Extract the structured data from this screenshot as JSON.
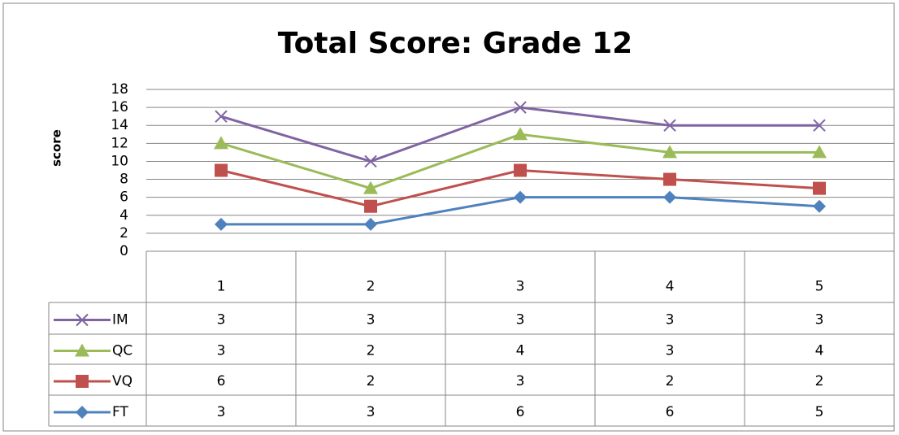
{
  "chart_data": {
    "type": "line",
    "stacked": true,
    "title": "Total Score: Grade 12",
    "y_label": "score",
    "categories": [
      "1",
      "2",
      "3",
      "4",
      "5"
    ],
    "series": [
      {
        "name": "IM",
        "color": "#8064a2",
        "marker": "x",
        "values": [
          3,
          3,
          3,
          3,
          3
        ]
      },
      {
        "name": "QC",
        "color": "#9bbb59",
        "marker": "triangle",
        "values": [
          3,
          2,
          4,
          3,
          4
        ]
      },
      {
        "name": "VQ",
        "color": "#c0504d",
        "marker": "square",
        "values": [
          6,
          2,
          3,
          2,
          2
        ]
      },
      {
        "name": "FT",
        "color": "#4f81bd",
        "marker": "diamond",
        "values": [
          3,
          3,
          6,
          6,
          5
        ]
      }
    ],
    "ylim": [
      0,
      18
    ],
    "yticks": [
      0,
      2,
      4,
      6,
      8,
      10,
      12,
      14,
      16,
      18
    ],
    "grid": true
  }
}
